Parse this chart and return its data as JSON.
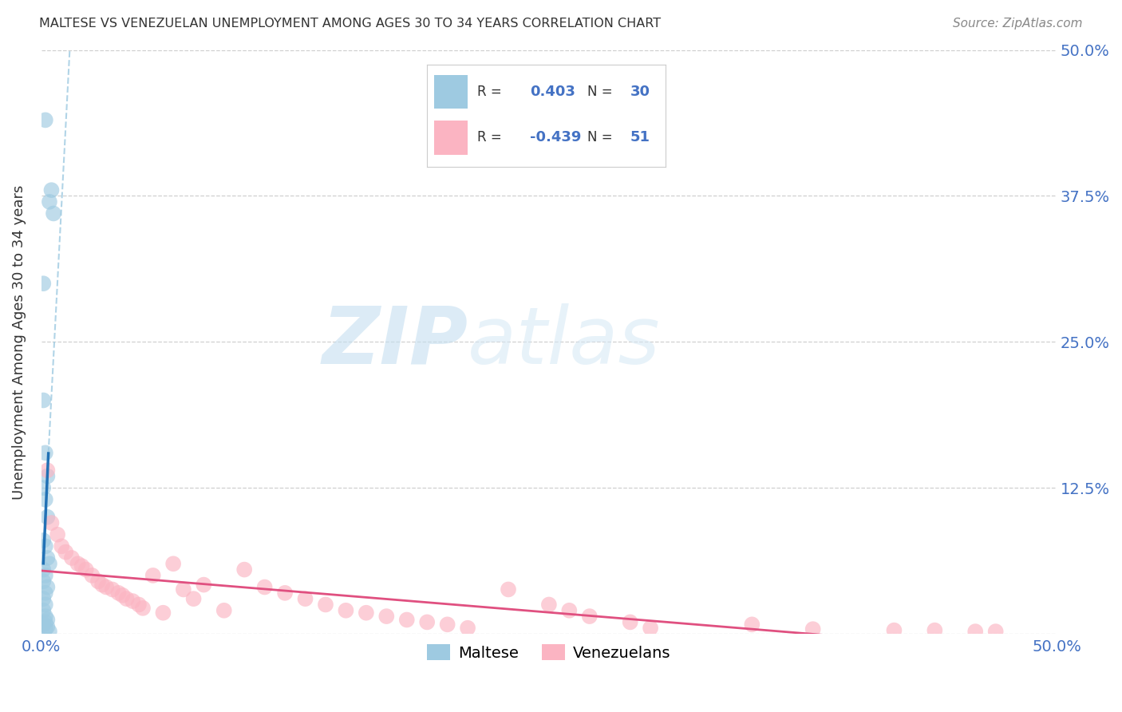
{
  "title": "MALTESE VS VENEZUELAN UNEMPLOYMENT AMONG AGES 30 TO 34 YEARS CORRELATION CHART",
  "source": "Source: ZipAtlas.com",
  "ylabel": "Unemployment Among Ages 30 to 34 years",
  "xlim": [
    0.0,
    0.5
  ],
  "ylim": [
    0.0,
    0.5
  ],
  "xticks": [
    0.0,
    0.125,
    0.25,
    0.375,
    0.5
  ],
  "yticks": [
    0.0,
    0.125,
    0.25,
    0.375,
    0.5
  ],
  "xtick_labels": [
    "0.0%",
    "",
    "",
    "",
    "50.0%"
  ],
  "right_ytick_labels": [
    "",
    "12.5%",
    "25.0%",
    "37.5%",
    "50.0%"
  ],
  "blue_color": "#9ecae1",
  "pink_color": "#fbb4c2",
  "blue_line_color": "#2171b5",
  "pink_line_color": "#e05080",
  "R_blue": 0.403,
  "N_blue": 30,
  "R_pink": -0.439,
  "N_pink": 51,
  "background_color": "#ffffff",
  "watermark_zip": "ZIP",
  "watermark_atlas": "atlas",
  "legend_labels": [
    "Maltese",
    "Venezuelans"
  ],
  "blue_scatter_x": [
    0.002,
    0.005,
    0.004,
    0.006,
    0.001,
    0.001,
    0.002,
    0.003,
    0.001,
    0.002,
    0.003,
    0.001,
    0.002,
    0.003,
    0.004,
    0.001,
    0.002,
    0.001,
    0.003,
    0.002,
    0.001,
    0.002,
    0.001,
    0.002,
    0.003,
    0.002,
    0.001,
    0.003,
    0.002,
    0.004
  ],
  "blue_scatter_y": [
    0.44,
    0.38,
    0.37,
    0.36,
    0.3,
    0.2,
    0.155,
    0.135,
    0.125,
    0.115,
    0.1,
    0.08,
    0.075,
    0.065,
    0.06,
    0.055,
    0.05,
    0.045,
    0.04,
    0.035,
    0.03,
    0.025,
    0.02,
    0.015,
    0.012,
    0.01,
    0.008,
    0.006,
    0.004,
    0.002
  ],
  "pink_scatter_x": [
    0.003,
    0.005,
    0.008,
    0.01,
    0.012,
    0.015,
    0.018,
    0.02,
    0.022,
    0.025,
    0.028,
    0.03,
    0.032,
    0.035,
    0.038,
    0.04,
    0.042,
    0.045,
    0.048,
    0.05,
    0.055,
    0.06,
    0.065,
    0.07,
    0.075,
    0.08,
    0.09,
    0.1,
    0.11,
    0.12,
    0.13,
    0.14,
    0.15,
    0.16,
    0.17,
    0.18,
    0.19,
    0.2,
    0.21,
    0.23,
    0.25,
    0.26,
    0.27,
    0.29,
    0.3,
    0.35,
    0.38,
    0.42,
    0.44,
    0.46,
    0.47
  ],
  "pink_scatter_y": [
    0.14,
    0.095,
    0.085,
    0.075,
    0.07,
    0.065,
    0.06,
    0.058,
    0.055,
    0.05,
    0.045,
    0.042,
    0.04,
    0.038,
    0.035,
    0.033,
    0.03,
    0.028,
    0.025,
    0.022,
    0.05,
    0.018,
    0.06,
    0.038,
    0.03,
    0.042,
    0.02,
    0.055,
    0.04,
    0.035,
    0.03,
    0.025,
    0.02,
    0.018,
    0.015,
    0.012,
    0.01,
    0.008,
    0.005,
    0.038,
    0.025,
    0.02,
    0.015,
    0.01,
    0.005,
    0.008,
    0.004,
    0.003,
    0.003,
    0.002,
    0.002
  ]
}
